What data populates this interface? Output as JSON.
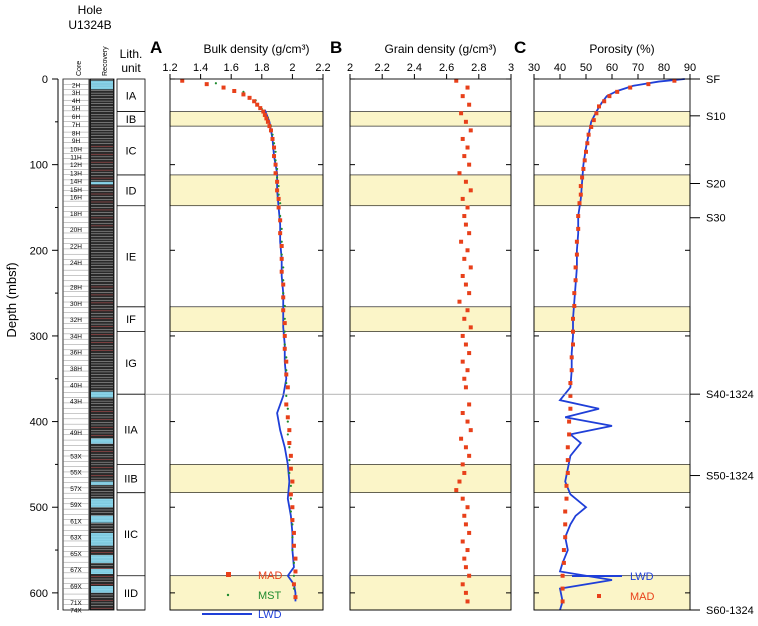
{
  "header": {
    "hole_line1": "Hole",
    "hole_line2": "U1324B",
    "core_col": "Core",
    "recovery_col": "Recovery",
    "lith_line1": "Lith.",
    "lith_line2": "unit"
  },
  "colors": {
    "mad": "#e8401a",
    "mst": "#1e8a2e",
    "lwd": "#1f3fd8",
    "band": "#fbf5c8",
    "recovery_bg": "#2a2a2a",
    "recovery_fill": "#8fe6ff"
  },
  "chart_data": {
    "type": "scatter",
    "depth_axis": {
      "label": "Depth (mbsf)",
      "range": [
        0,
        620
      ],
      "ticks": [
        "0",
        "100",
        "200",
        "300",
        "400",
        "500",
        "600"
      ],
      "tick_values": [
        0,
        100,
        200,
        300,
        400,
        500,
        600
      ]
    },
    "lith_units": [
      {
        "name": "IA",
        "top": 0,
        "bottom": 38
      },
      {
        "name": "IB",
        "top": 38,
        "bottom": 55
      },
      {
        "name": "IC",
        "top": 55,
        "bottom": 112
      },
      {
        "name": "ID",
        "top": 112,
        "bottom": 148
      },
      {
        "name": "IE",
        "top": 148,
        "bottom": 266
      },
      {
        "name": "IF",
        "top": 266,
        "bottom": 295
      },
      {
        "name": "IG",
        "top": 295,
        "bottom": 368
      },
      {
        "name": "IIA",
        "top": 368,
        "bottom": 450
      },
      {
        "name": "IIB",
        "top": 450,
        "bottom": 483
      },
      {
        "name": "IIC",
        "top": 483,
        "bottom": 580
      },
      {
        "name": "IID",
        "top": 580,
        "bottom": 620
      }
    ],
    "bands": [
      [
        38,
        55
      ],
      [
        112,
        148
      ],
      [
        266,
        295
      ],
      [
        450,
        483
      ],
      [
        580,
        620
      ]
    ],
    "seismic_horizons": [
      {
        "label": "SF",
        "depth": 0
      },
      {
        "label": "S10",
        "depth": 43
      },
      {
        "label": "S20",
        "depth": 122
      },
      {
        "label": "S30",
        "depth": 162
      },
      {
        "label": "S40-1324",
        "depth": 368
      },
      {
        "label": "S50-1324",
        "depth": 463
      },
      {
        "label": "S60-1324",
        "depth": 620
      }
    ],
    "horizon_line_depth": 368,
    "cores": [
      {
        "label": "2H",
        "depth": 7
      },
      {
        "label": "3H",
        "depth": 16
      },
      {
        "label": "4H",
        "depth": 25
      },
      {
        "label": "5H",
        "depth": 34
      },
      {
        "label": "6H",
        "depth": 44
      },
      {
        "label": "7H",
        "depth": 53
      },
      {
        "label": "8H",
        "depth": 63
      },
      {
        "label": "9H",
        "depth": 72
      },
      {
        "label": "10H",
        "depth": 82
      },
      {
        "label": "11H",
        "depth": 91
      },
      {
        "label": "12H",
        "depth": 100
      },
      {
        "label": "13H",
        "depth": 110
      },
      {
        "label": "14H",
        "depth": 119
      },
      {
        "label": "15H",
        "depth": 129
      },
      {
        "label": "16H",
        "depth": 138
      },
      {
        "label": "18H",
        "depth": 157
      },
      {
        "label": "20H",
        "depth": 176
      },
      {
        "label": "22H",
        "depth": 195
      },
      {
        "label": "24H",
        "depth": 214
      },
      {
        "label": "28H",
        "depth": 243
      },
      {
        "label": "30H",
        "depth": 262
      },
      {
        "label": "32H",
        "depth": 281
      },
      {
        "label": "34H",
        "depth": 300
      },
      {
        "label": "36H",
        "depth": 319
      },
      {
        "label": "38H",
        "depth": 338
      },
      {
        "label": "40H",
        "depth": 357
      },
      {
        "label": "43H",
        "depth": 376
      },
      {
        "label": "49H",
        "depth": 413
      },
      {
        "label": "53X",
        "depth": 440
      },
      {
        "label": "55X",
        "depth": 459
      },
      {
        "label": "57X",
        "depth": 478
      },
      {
        "label": "59X",
        "depth": 497
      },
      {
        "label": "61X",
        "depth": 516
      },
      {
        "label": "63X",
        "depth": 535
      },
      {
        "label": "65X",
        "depth": 554
      },
      {
        "label": "67X",
        "depth": 573
      },
      {
        "label": "69X",
        "depth": 592
      },
      {
        "label": "71X",
        "depth": 611
      },
      {
        "label": "74X",
        "depth": 620
      }
    ],
    "panels": [
      {
        "letter": "A",
        "title": "Bulk density (g/cm³)",
        "range": [
          1.2,
          2.2
        ],
        "ticks": [
          "1.2",
          "1.4",
          "1.6",
          "1.8",
          "2",
          "2.2"
        ],
        "tick_values": [
          1.2,
          1.4,
          1.6,
          1.8,
          2.0,
          2.2
        ],
        "series": [
          {
            "name": "MAD",
            "kind": "square",
            "depths": [
              2,
              6,
              10,
              14,
              18,
              22,
              26,
              30,
              34,
              38,
              42,
              46,
              50,
              55,
              60,
              70,
              80,
              90,
              100,
              110,
              120,
              130,
              140,
              150,
              165,
              180,
              195,
              210,
              225,
              240,
              255,
              270,
              285,
              300,
              315,
              330,
              345,
              360,
              380,
              395,
              410,
              425,
              440,
              455,
              470,
              485,
              500,
              515,
              530,
              545,
              560,
              575,
              590,
              605
            ],
            "values": [
              1.28,
              1.44,
              1.55,
              1.62,
              1.68,
              1.72,
              1.75,
              1.77,
              1.79,
              1.81,
              1.82,
              1.83,
              1.84,
              1.85,
              1.86,
              1.87,
              1.88,
              1.88,
              1.89,
              1.89,
              1.9,
              1.9,
              1.91,
              1.91,
              1.92,
              1.92,
              1.93,
              1.93,
              1.93,
              1.94,
              1.94,
              1.94,
              1.95,
              1.95,
              1.95,
              1.96,
              1.96,
              1.97,
              1.96,
              1.97,
              1.98,
              1.98,
              1.99,
              1.99,
              2.0,
              1.99,
              2.0,
              2.0,
              2.01,
              2.01,
              2.02,
              2.02,
              2.01,
              2.02
            ]
          },
          {
            "name": "MST",
            "kind": "dot",
            "depths": [
              5,
              15,
              25,
              35,
              45,
              55,
              65,
              75,
              85,
              95,
              105,
              115,
              125,
              135,
              145,
              160,
              175,
              190,
              205,
              220,
              235,
              250,
              265,
              280,
              295,
              310,
              325,
              340,
              355,
              370,
              385,
              400,
              415,
              430,
              445,
              460,
              475,
              490,
              505,
              520,
              535,
              550,
              565,
              580,
              595
            ],
            "values": [
              1.5,
              1.68,
              1.76,
              1.8,
              1.84,
              1.86,
              1.87,
              1.88,
              1.89,
              1.89,
              1.9,
              1.9,
              1.91,
              1.91,
              1.92,
              1.92,
              1.93,
              1.93,
              1.93,
              1.94,
              1.94,
              1.94,
              1.95,
              1.95,
              1.95,
              1.95,
              1.96,
              1.96,
              1.96,
              1.96,
              1.97,
              1.97,
              1.97,
              1.98,
              1.98,
              1.98,
              1.99,
              1.99,
              1.99,
              2.0,
              2.0,
              2.0,
              2.01,
              2.01,
              2.01
            ]
          },
          {
            "name": "LWD",
            "kind": "line",
            "depths": [
              36,
              50,
              70,
              90,
              110,
              130,
              150,
              170,
              190,
              210,
              230,
              250,
              270,
              290,
              310,
              330,
              350,
              370,
              390,
              410,
              430,
              450,
              470,
              490,
              510,
              530,
              550,
              570,
              580,
              590,
              600,
              610
            ],
            "values": [
              1.82,
              1.85,
              1.87,
              1.88,
              1.9,
              1.9,
              1.91,
              1.92,
              1.92,
              1.93,
              1.93,
              1.94,
              1.94,
              1.94,
              1.95,
              1.95,
              1.96,
              1.94,
              1.9,
              1.92,
              1.95,
              1.97,
              1.98,
              1.97,
              1.99,
              2.0,
              2.0,
              2.01,
              1.97,
              2.01,
              2.02,
              2.02
            ]
          }
        ]
      },
      {
        "letter": "B",
        "title": "Grain density (g/cm³)",
        "range": [
          2.0,
          3.0
        ],
        "ticks": [
          "2",
          "2.2",
          "2.4",
          "2.6",
          "2.8",
          "3"
        ],
        "tick_values": [
          2.0,
          2.2,
          2.4,
          2.6,
          2.8,
          3.0
        ],
        "series": [
          {
            "name": "MAD",
            "kind": "square",
            "depths": [
              2,
              10,
              20,
              30,
              40,
              50,
              60,
              70,
              80,
              90,
              100,
              110,
              120,
              130,
              140,
              150,
              160,
              170,
              180,
              190,
              200,
              210,
              220,
              230,
              240,
              250,
              260,
              270,
              280,
              290,
              300,
              310,
              320,
              330,
              340,
              350,
              360,
              380,
              390,
              400,
              410,
              420,
              430,
              440,
              450,
              460,
              470,
              480,
              490,
              500,
              510,
              520,
              530,
              540,
              550,
              560,
              570,
              580,
              590,
              600,
              610
            ],
            "values": [
              2.66,
              2.73,
              2.7,
              2.74,
              2.69,
              2.72,
              2.75,
              2.7,
              2.73,
              2.71,
              2.74,
              2.68,
              2.72,
              2.75,
              2.7,
              2.73,
              2.71,
              2.72,
              2.74,
              2.69,
              2.73,
              2.71,
              2.75,
              2.7,
              2.72,
              2.74,
              2.68,
              2.73,
              2.71,
              2.75,
              2.7,
              2.72,
              2.74,
              2.7,
              2.73,
              2.71,
              2.72,
              2.74,
              2.7,
              2.73,
              2.75,
              2.69,
              2.72,
              2.74,
              2.7,
              2.71,
              2.68,
              2.66,
              2.7,
              2.73,
              2.71,
              2.72,
              2.74,
              2.7,
              2.73,
              2.71,
              2.72,
              2.74,
              2.7,
              2.72,
              2.73
            ]
          }
        ]
      },
      {
        "letter": "C",
        "title": "Porosity (%)",
        "range": [
          30,
          90
        ],
        "ticks": [
          "30",
          "40",
          "50",
          "60",
          "70",
          "80",
          "90"
        ],
        "tick_values": [
          30,
          40,
          50,
          60,
          70,
          80,
          90
        ],
        "series": [
          {
            "name": "LWD",
            "kind": "line",
            "depths": [
              0,
              3,
              8,
              14,
              20,
              28,
              38,
              50,
              65,
              80,
              100,
              120,
              140,
              160,
              180,
              200,
              220,
              240,
              260,
              280,
              300,
              320,
              340,
              360,
              375,
              385,
              395,
              405,
              415,
              425,
              440,
              455,
              470,
              485,
              500,
              510,
              520,
              535,
              550,
              565,
              575,
              580,
              585,
              595,
              610,
              620
            ],
            "values": [
              88,
              78,
              68,
              62,
              58,
              56,
              54,
              52,
              51,
              50,
              49,
              48.5,
              48,
              47,
              47,
              46.5,
              46.5,
              46,
              45.5,
              45,
              45,
              44.5,
              44.5,
              44,
              40,
              55,
              42,
              60,
              44,
              48,
              44,
              43,
              42,
              44,
              50,
              46,
              44,
              42,
              43,
              41,
              40,
              50,
              60,
              40,
              41,
              40
            ]
          },
          {
            "name": "MAD",
            "kind": "square",
            "depths": [
              2,
              6,
              10,
              15,
              20,
              26,
              32,
              40,
              48,
              56,
              65,
              75,
              85,
              95,
              105,
              115,
              125,
              135,
              145,
              160,
              175,
              190,
              205,
              220,
              235,
              250,
              265,
              280,
              295,
              310,
              325,
              340,
              355,
              370,
              385,
              400,
              415,
              430,
              445,
              460,
              475,
              490,
              505,
              520,
              535,
              550,
              565,
              580,
              595,
              610
            ],
            "values": [
              84,
              74,
              67,
              62,
              59,
              57,
              55,
              54,
              53,
              52,
              51,
              50.5,
              50,
              49.5,
              49,
              48.5,
              48,
              48,
              47.5,
              47,
              47,
              46.5,
              46.5,
              46,
              46,
              45.5,
              45.5,
              45,
              45,
              45,
              44.5,
              44.5,
              44,
              44,
              44,
              43.5,
              43.5,
              43,
              43,
              43,
              42.5,
              42.5,
              42,
              42,
              42,
              41.5,
              41.5,
              41,
              41,
              41
            ]
          }
        ]
      }
    ]
  },
  "legends": {
    "left": [
      "MAD",
      "MST",
      "LWD"
    ],
    "right": [
      "LWD",
      "MAD"
    ]
  }
}
